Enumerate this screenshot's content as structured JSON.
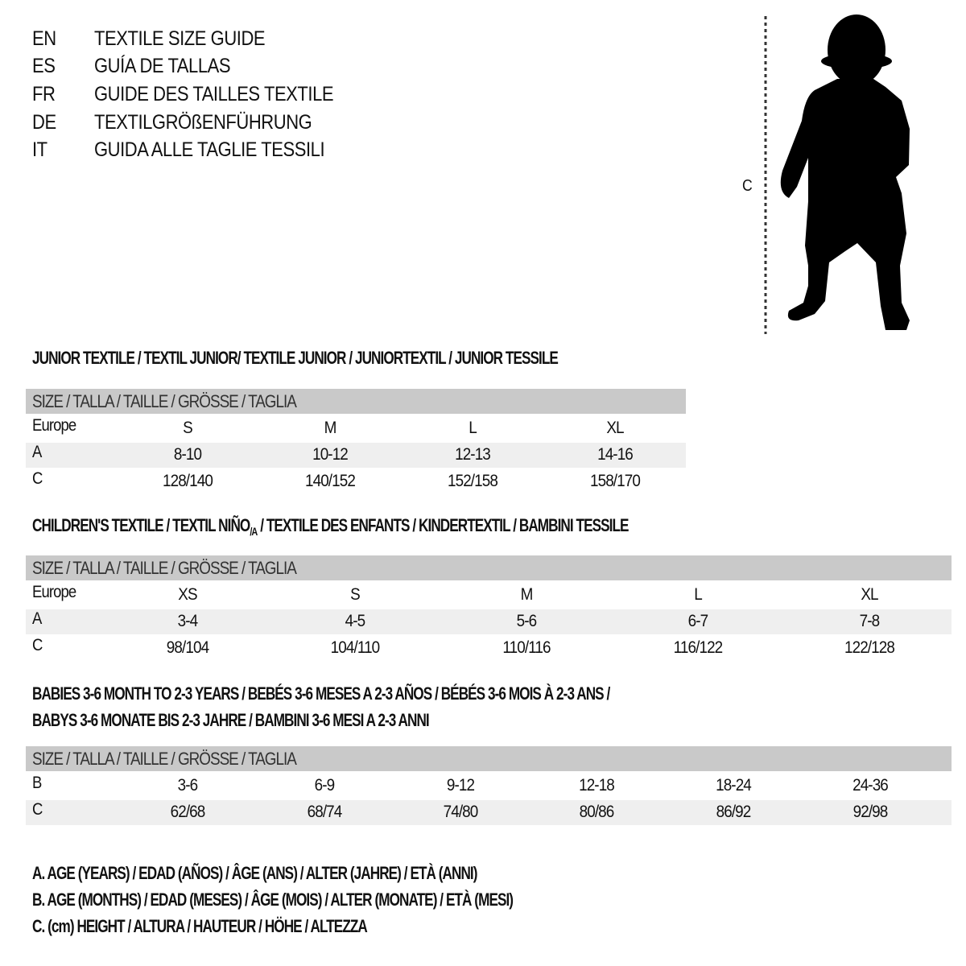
{
  "title_rows": [
    {
      "code": "EN",
      "text": "TEXTILE SIZE GUIDE"
    },
    {
      "code": "ES",
      "text": "GUÍA DE TALLAS"
    },
    {
      "code": "FR",
      "text": "GUIDE DES TAILLES TEXTILE"
    },
    {
      "code": "DE",
      "text": "TEXTILGRÖßENFÜHRUNG"
    },
    {
      "code": "IT",
      "text": "GUIDA ALLE TAGLIE TESSILI"
    }
  ],
  "figure": {
    "measure_label": "C"
  },
  "size_header": "SIZE / TALLA / TAILLE / GRÖSSE / TAGLIA",
  "junior": {
    "title": "JUNIOR TEXTILE / TEXTIL JUNIOR/ TEXTILE JUNIOR / JUNIORTEXTIL / JUNIOR TESSILE",
    "rows": [
      {
        "label": "Europe",
        "values": [
          "S",
          "M",
          "L",
          "XL"
        ]
      },
      {
        "label": "A",
        "values": [
          "8-10",
          "10-12",
          "12-13",
          "14-16"
        ]
      },
      {
        "label": "C",
        "values": [
          "128/140",
          "140/152",
          "152/158",
          "158/170"
        ]
      }
    ]
  },
  "children": {
    "title_a": "CHILDREN'S TEXTILE / TEXTIL NIÑO",
    "title_sub": "/A",
    "title_b": " / TEXTILE DES ENFANTS / KINDERTEXTIL / BAMBINI TESSILE",
    "rows": [
      {
        "label": "Europe",
        "values": [
          "XS",
          "S",
          "M",
          "L",
          "XL"
        ]
      },
      {
        "label": "A",
        "values": [
          "3-4",
          "4-5",
          "5-6",
          "6-7",
          "7-8"
        ]
      },
      {
        "label": "C",
        "values": [
          "98/104",
          "104/110",
          "110/116",
          "116/122",
          "122/128"
        ]
      }
    ]
  },
  "babies": {
    "title_line1": "BABIES 3-6 MONTH TO 2-3 YEARS / BEBÉS 3-6 MESES A 2-3 AÑOS / BÉBÉS 3-6 MOIS À 2-3 ANS /",
    "title_line2": "BABYS 3-6 MONATE BIS 2-3 JAHRE / BAMBINI 3-6 MESI A 2-3 ANNI",
    "rows": [
      {
        "label": "B",
        "values": [
          "3-6",
          "6-9",
          "9-12",
          "12-18",
          "18-24",
          "24-36"
        ]
      },
      {
        "label": "C",
        "values": [
          "62/68",
          "68/74",
          "74/80",
          "80/86",
          "86/92",
          "92/98"
        ]
      }
    ]
  },
  "legend": [
    "A. AGE (YEARS) / EDAD (AÑOS) / ÂGE (ANS) / ALTER (JAHRE) / ETÀ (ANNI)",
    "B. AGE (MONTHS) / EDAD (MESES) / ÂGE (MOIS) / ALTER (MONATE) / ETÀ (MESI)",
    "C. (cm) HEIGHT / ALTURA / HAUTEUR / HÖHE / ALTEZZA"
  ],
  "colors": {
    "header": "#c9c9c9",
    "stripe": "#efefef"
  }
}
